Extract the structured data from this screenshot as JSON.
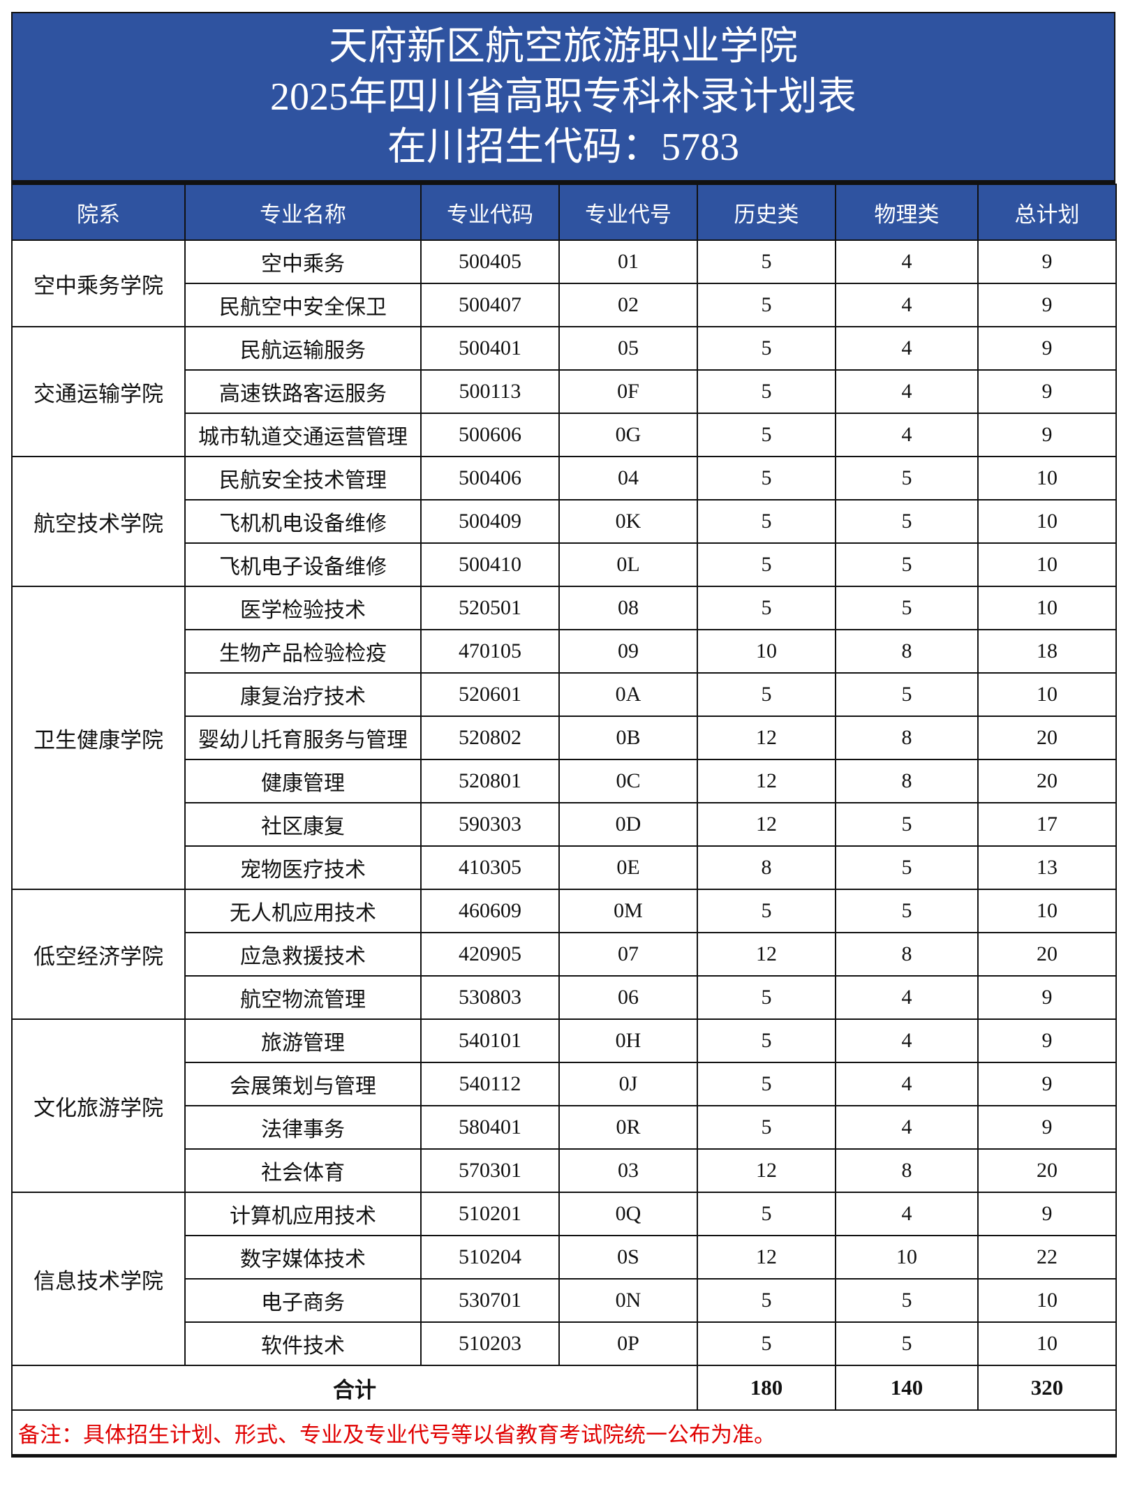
{
  "title": {
    "line1": "天府新区航空旅游职业学院",
    "line2": "2025年四川省高职专科补录计划表",
    "line3": "在川招生代码：5783"
  },
  "colors": {
    "header_bg": "#2f53a0",
    "note_text": "#e00000"
  },
  "columns": [
    "院系",
    "专业名称",
    "专业代码",
    "专业代号",
    "历史类",
    "物理类",
    "总计划"
  ],
  "departments": [
    {
      "name": "空中乘务学院",
      "rows": [
        [
          "空中乘务",
          "500405",
          "01",
          "5",
          "4",
          "9"
        ],
        [
          "民航空中安全保卫",
          "500407",
          "02",
          "5",
          "4",
          "9"
        ]
      ]
    },
    {
      "name": "交通运输学院",
      "rows": [
        [
          "民航运输服务",
          "500401",
          "05",
          "5",
          "4",
          "9"
        ],
        [
          "高速铁路客运服务",
          "500113",
          "0F",
          "5",
          "4",
          "9"
        ],
        [
          "城市轨道交通运营管理",
          "500606",
          "0G",
          "5",
          "4",
          "9"
        ]
      ]
    },
    {
      "name": "航空技术学院",
      "rows": [
        [
          "民航安全技术管理",
          "500406",
          "04",
          "5",
          "5",
          "10"
        ],
        [
          "飞机机电设备维修",
          "500409",
          "0K",
          "5",
          "5",
          "10"
        ],
        [
          "飞机电子设备维修",
          "500410",
          "0L",
          "5",
          "5",
          "10"
        ]
      ]
    },
    {
      "name": "卫生健康学院",
      "rows": [
        [
          "医学检验技术",
          "520501",
          "08",
          "5",
          "5",
          "10"
        ],
        [
          "生物产品检验检疫",
          "470105",
          "09",
          "10",
          "8",
          "18"
        ],
        [
          "康复治疗技术",
          "520601",
          "0A",
          "5",
          "5",
          "10"
        ],
        [
          "婴幼儿托育服务与管理",
          "520802",
          "0B",
          "12",
          "8",
          "20"
        ],
        [
          "健康管理",
          "520801",
          "0C",
          "12",
          "8",
          "20"
        ],
        [
          "社区康复",
          "590303",
          "0D",
          "12",
          "5",
          "17"
        ],
        [
          "宠物医疗技术",
          "410305",
          "0E",
          "8",
          "5",
          "13"
        ]
      ]
    },
    {
      "name": "低空经济学院",
      "rows": [
        [
          "无人机应用技术",
          "460609",
          "0M",
          "5",
          "5",
          "10"
        ],
        [
          "应急救援技术",
          "420905",
          "07",
          "12",
          "8",
          "20"
        ],
        [
          "航空物流管理",
          "530803",
          "06",
          "5",
          "4",
          "9"
        ]
      ]
    },
    {
      "name": "文化旅游学院",
      "rows": [
        [
          "旅游管理",
          "540101",
          "0H",
          "5",
          "4",
          "9"
        ],
        [
          "会展策划与管理",
          "540112",
          "0J",
          "5",
          "4",
          "9"
        ],
        [
          "法律事务",
          "580401",
          "0R",
          "5",
          "4",
          "9"
        ],
        [
          "社会体育",
          "570301",
          "03",
          "12",
          "8",
          "20"
        ]
      ]
    },
    {
      "name": "信息技术学院",
      "rows": [
        [
          "计算机应用技术",
          "510201",
          "0Q",
          "5",
          "4",
          "9"
        ],
        [
          "数字媒体技术",
          "510204",
          "0S",
          "12",
          "10",
          "22"
        ],
        [
          "电子商务",
          "530701",
          "0N",
          "5",
          "5",
          "10"
        ],
        [
          "软件技术",
          "510203",
          "0P",
          "5",
          "5",
          "10"
        ]
      ]
    }
  ],
  "total": {
    "label": "合计",
    "history": "180",
    "physics": "140",
    "plan": "320"
  },
  "note": "备注：具体招生计划、形式、专业及专业代号等以省教育考试院统一公布为准。"
}
